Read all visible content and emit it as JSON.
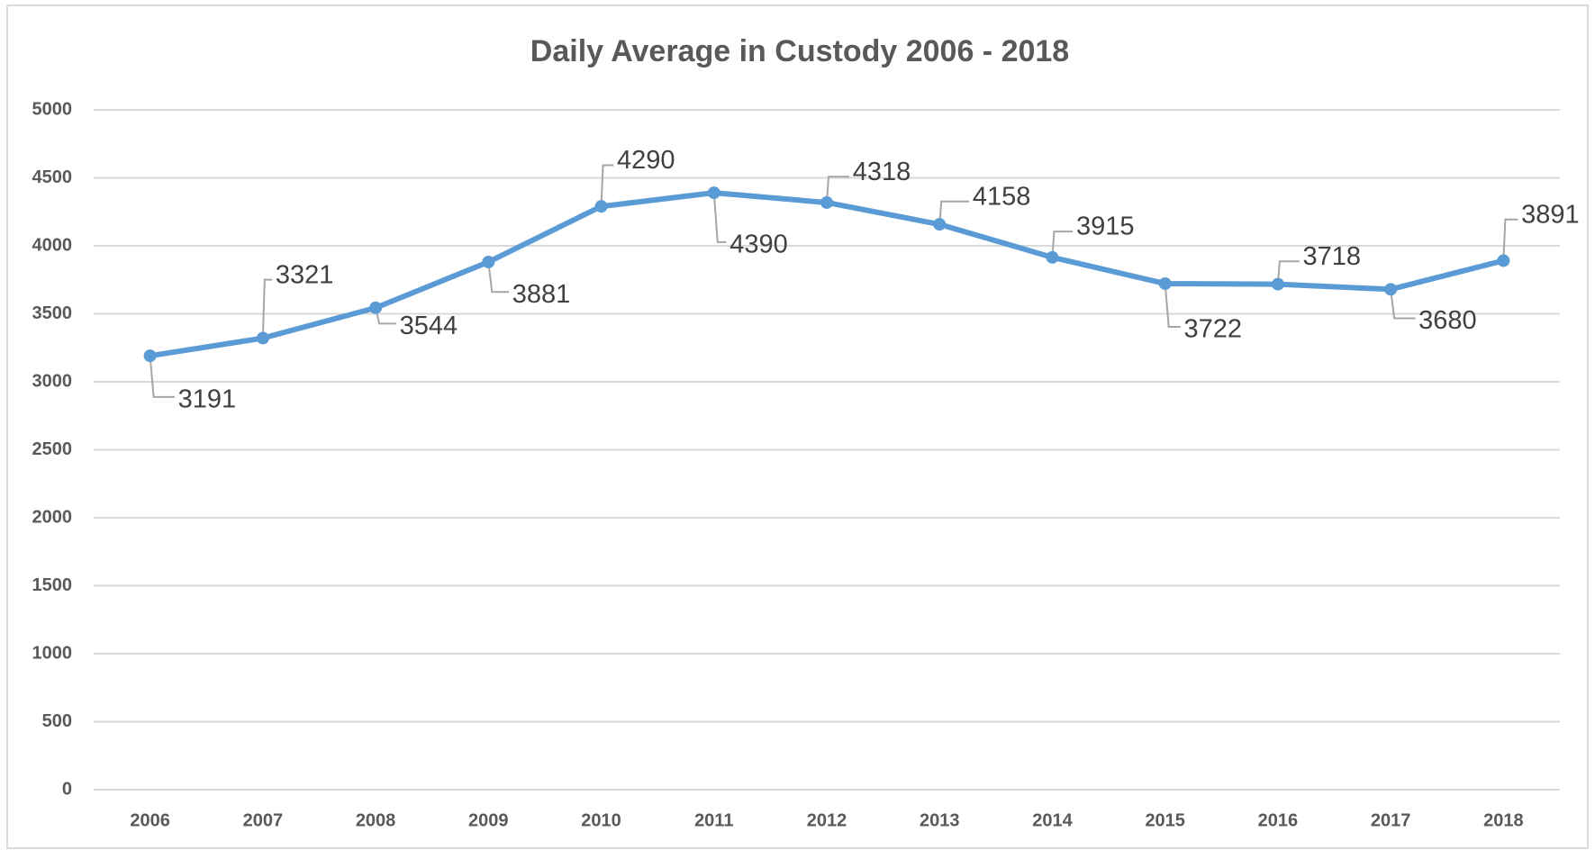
{
  "chart_data": {
    "type": "line",
    "title": "Daily Average in Custody 2006 - 2018",
    "categories": [
      "2006",
      "2007",
      "2008",
      "2009",
      "2010",
      "2011",
      "2012",
      "2013",
      "2014",
      "2015",
      "2016",
      "2017",
      "2018"
    ],
    "series": [
      {
        "name": "Daily Average in Custody",
        "color": "#5b9bd5",
        "values": [
          3191,
          3321,
          3544,
          3881,
          4290,
          4390,
          4318,
          4158,
          3915,
          3722,
          3718,
          3680,
          3891
        ]
      }
    ],
    "ylim": [
      0,
      5000
    ],
    "yticks": [
      0,
      500,
      1000,
      1500,
      2000,
      2500,
      3000,
      3500,
      4000,
      4500,
      5000
    ],
    "grid": true
  }
}
